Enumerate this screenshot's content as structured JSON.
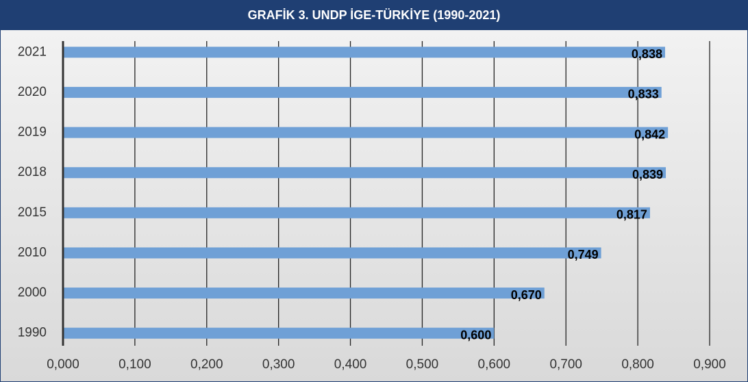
{
  "chart_data": {
    "type": "barh",
    "title": "GRAFİK 3. UNDP İGE-TÜRKİYE (1990-2021)",
    "categories": [
      "2021",
      "2020",
      "2019",
      "2018",
      "2015",
      "2010",
      "2000",
      "1990"
    ],
    "values": [
      0.838,
      0.833,
      0.842,
      0.839,
      0.817,
      0.749,
      0.67,
      0.6
    ],
    "value_labels": [
      "0,838",
      "0,833",
      "0,842",
      "0,839",
      "0,817",
      "0,749",
      "0,670",
      "0,600"
    ],
    "color": "#6fa0d6",
    "xlim": [
      0,
      0.9
    ],
    "xticks": [
      {
        "value": 0,
        "label": "0,000"
      },
      {
        "value": 0.1,
        "label": "0,100"
      },
      {
        "value": 0.2,
        "label": "0,200"
      },
      {
        "value": 0.3,
        "label": "0,300"
      },
      {
        "value": 0.4,
        "label": "0,400"
      },
      {
        "value": 0.5,
        "label": "0,500"
      },
      {
        "value": 0.6,
        "label": "0,600"
      },
      {
        "value": 0.7,
        "label": "0,700"
      },
      {
        "value": 0.8,
        "label": "0,800"
      },
      {
        "value": 0.9,
        "label": "0,900"
      }
    ],
    "grid": true
  }
}
